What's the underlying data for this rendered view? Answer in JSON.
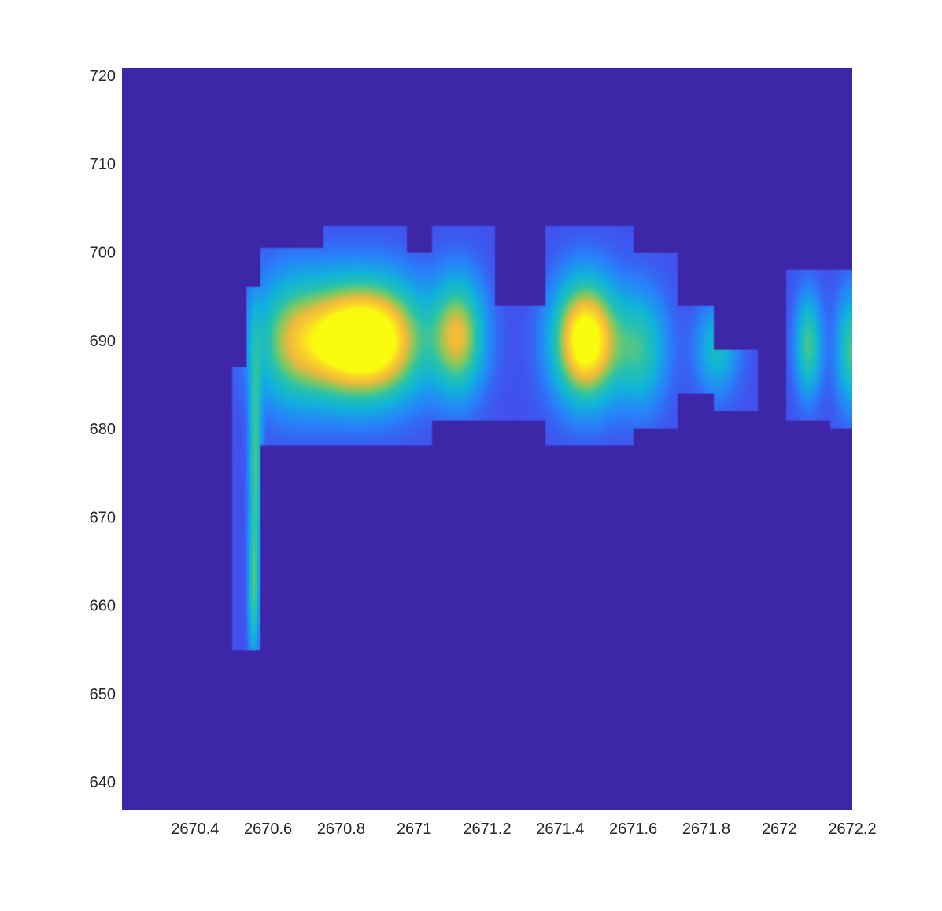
{
  "chart_data": {
    "type": "heatmap",
    "title": "",
    "xlabel": "",
    "ylabel": "",
    "xlim": [
      2670.2,
      2672.2
    ],
    "ylim": [
      636.8,
      720.8
    ],
    "x_ticks": [
      2670.4,
      2670.6,
      2670.8,
      2671,
      2671.2,
      2671.4,
      2671.6,
      2671.8,
      2672,
      2672.2
    ],
    "x_tick_labels": [
      "2670.4",
      "2670.6",
      "2670.8",
      "2671",
      "2671.2",
      "2671.4",
      "2671.6",
      "2671.8",
      "2672",
      "2672.2"
    ],
    "y_ticks": [
      640,
      650,
      660,
      670,
      680,
      690,
      700,
      710,
      720
    ],
    "y_tick_labels": [
      "640",
      "650",
      "660",
      "670",
      "680",
      "690",
      "700",
      "710",
      "720"
    ],
    "colormap": "parula",
    "background_color": "#3e26a8",
    "grid": false,
    "legend": false,
    "blobs": [
      {
        "x": 2670.565,
        "y": 676,
        "sx": 0.012,
        "sy": 10,
        "amp": 0.45
      },
      {
        "x": 2670.56,
        "y": 661,
        "sx": 0.01,
        "sy": 5,
        "amp": 0.32
      },
      {
        "x": 2670.66,
        "y": 690,
        "sx": 0.07,
        "sy": 5,
        "amp": 0.5
      },
      {
        "x": 2670.8,
        "y": 690,
        "sx": 0.08,
        "sy": 4.5,
        "amp": 0.78
      },
      {
        "x": 2670.92,
        "y": 690,
        "sx": 0.08,
        "sy": 4.5,
        "amp": 0.76
      },
      {
        "x": 2671.12,
        "y": 690.5,
        "sx": 0.05,
        "sy": 4.5,
        "amp": 0.65
      },
      {
        "x": 2671.47,
        "y": 690,
        "sx": 0.06,
        "sy": 4.6,
        "amp": 1.0
      },
      {
        "x": 2671.62,
        "y": 689,
        "sx": 0.05,
        "sy": 4.5,
        "amp": 0.4
      },
      {
        "x": 2671.83,
        "y": 689,
        "sx": 0.04,
        "sy": 3.5,
        "amp": 0.32
      },
      {
        "x": 2672.08,
        "y": 689.5,
        "sx": 0.025,
        "sy": 4,
        "amp": 0.45
      },
      {
        "x": 2672.2,
        "y": 689,
        "sx": 0.03,
        "sy": 4.5,
        "amp": 0.45
      }
    ],
    "regions": [
      {
        "x": [
          2670.5,
          2670.58
        ],
        "y": [
          655,
          687
        ]
      },
      {
        "x": [
          2670.54,
          2670.66
        ],
        "y": [
          678,
          696
        ]
      },
      {
        "x": [
          2670.58,
          2670.75
        ],
        "y": [
          678,
          700.5
        ]
      },
      {
        "x": [
          2670.75,
          2670.98
        ],
        "y": [
          678,
          703
        ]
      },
      {
        "x": [
          2670.98,
          2671.05
        ],
        "y": [
          678,
          700
        ]
      },
      {
        "x": [
          2671.05,
          2671.22
        ],
        "y": [
          681,
          703
        ]
      },
      {
        "x": [
          2671.22,
          2671.36
        ],
        "y": [
          681,
          694
        ]
      },
      {
        "x": [
          2671.36,
          2671.6
        ],
        "y": [
          678,
          703
        ]
      },
      {
        "x": [
          2671.6,
          2671.72
        ],
        "y": [
          680,
          700
        ]
      },
      {
        "x": [
          2671.72,
          2671.82
        ],
        "y": [
          684,
          694
        ]
      },
      {
        "x": [
          2671.82,
          2671.94
        ],
        "y": [
          682,
          689
        ]
      },
      {
        "x": [
          2672.02,
          2672.14
        ],
        "y": [
          681,
          698
        ]
      },
      {
        "x": [
          2672.14,
          2672.2
        ],
        "y": [
          680,
          698
        ]
      }
    ]
  }
}
